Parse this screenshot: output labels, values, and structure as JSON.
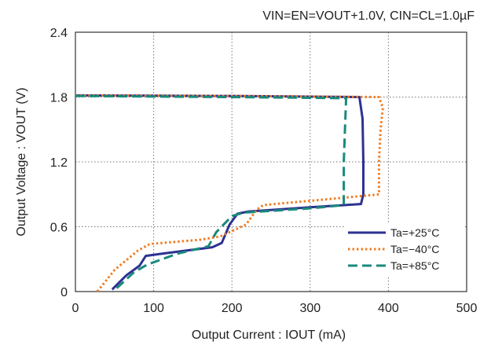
{
  "chart_data": {
    "type": "line",
    "title": "VIN=EN=VOUT+1.0V, CIN=CL=1.0µF",
    "xlabel": "Output Current : IOUT (mA)",
    "ylabel": "Output Voltage : VOUT (V)",
    "xlim": [
      0,
      500
    ],
    "ylim": [
      0,
      2.4
    ],
    "x_ticks": [
      "0",
      "100",
      "200",
      "300",
      "400",
      "500"
    ],
    "y_ticks": [
      "0",
      "0.6",
      "1.2",
      "1.8",
      "2.4"
    ],
    "grid": true,
    "legend_position": "bottom-right",
    "series": [
      {
        "name": "Ta=+25°C",
        "color": "#2e3192",
        "dash": "solid",
        "points": [
          [
            0,
            1.815
          ],
          [
            200,
            1.81
          ],
          [
            363,
            1.8
          ],
          [
            367,
            1.6
          ],
          [
            368,
            1.2
          ],
          [
            368,
            0.9
          ],
          [
            365,
            0.81
          ],
          [
            300,
            0.78
          ],
          [
            220,
            0.74
          ],
          [
            207,
            0.72
          ],
          [
            197,
            0.62
          ],
          [
            187,
            0.45
          ],
          [
            175,
            0.41
          ],
          [
            110,
            0.35
          ],
          [
            90,
            0.33
          ],
          [
            82,
            0.24
          ],
          [
            65,
            0.15
          ],
          [
            47,
            0.02
          ]
        ]
      },
      {
        "name": "Ta=−40°C",
        "color": "#f07d23",
        "dash": "dotted",
        "points": [
          [
            0,
            1.815
          ],
          [
            200,
            1.81
          ],
          [
            388,
            1.8
          ],
          [
            393,
            1.7
          ],
          [
            390,
            1.5
          ],
          [
            388,
            1.2
          ],
          [
            388,
            0.9
          ],
          [
            345,
            0.87
          ],
          [
            240,
            0.8
          ],
          [
            232,
            0.76
          ],
          [
            218,
            0.62
          ],
          [
            185,
            0.51
          ],
          [
            160,
            0.48
          ],
          [
            95,
            0.44
          ],
          [
            80,
            0.38
          ],
          [
            50,
            0.2
          ],
          [
            28,
            0.0
          ]
        ]
      },
      {
        "name": "Ta=+85°C",
        "color": "#1a8a7a",
        "dash": "dashed",
        "points": [
          [
            0,
            1.81
          ],
          [
            200,
            1.8
          ],
          [
            346,
            1.79
          ],
          [
            345,
            1.6
          ],
          [
            343,
            1.2
          ],
          [
            343,
            0.85
          ],
          [
            343,
            0.8
          ],
          [
            300,
            0.77
          ],
          [
            215,
            0.73
          ],
          [
            200,
            0.7
          ],
          [
            180,
            0.55
          ],
          [
            170,
            0.42
          ],
          [
            130,
            0.35
          ],
          [
            92,
            0.25
          ],
          [
            75,
            0.18
          ],
          [
            48,
            0.0
          ]
        ]
      }
    ]
  }
}
